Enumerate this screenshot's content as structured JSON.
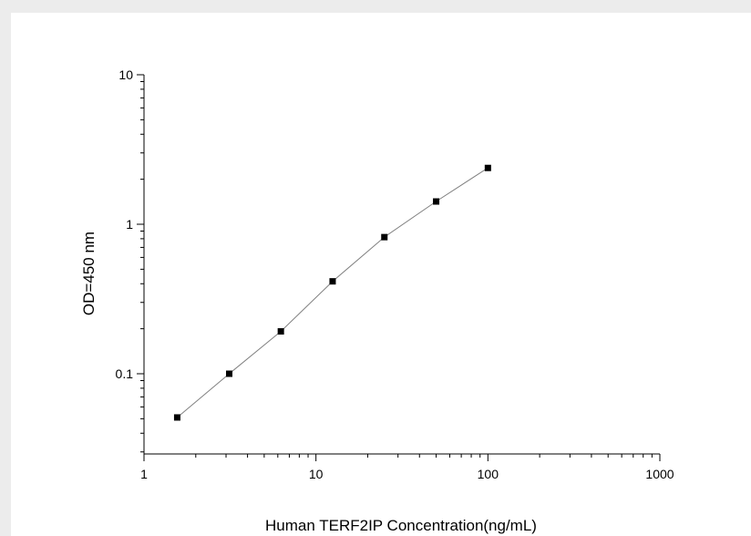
{
  "chart_data": {
    "type": "scatter",
    "xlabel": "Human TERF2IP Concentration(ng/mL)",
    "ylabel": "OD=450 nm",
    "xscale": "log",
    "yscale": "log",
    "xlim": [
      1,
      1000
    ],
    "ylim": [
      0.03,
      10
    ],
    "x_ticks": [
      1,
      10,
      100,
      1000
    ],
    "x_tick_labels": [
      "1",
      "10",
      "100",
      "1000"
    ],
    "y_ticks": [
      0.1,
      1,
      10
    ],
    "y_tick_labels": [
      "0.1",
      "1",
      "10"
    ],
    "grid": false,
    "legend": "none",
    "series": [
      {
        "x": [
          1.56,
          3.13,
          6.25,
          12.5,
          25,
          50,
          100
        ],
        "y": [
          0.051,
          0.1,
          0.192,
          0.415,
          0.82,
          1.42,
          2.38
        ],
        "marker": "square",
        "marker_color": "#000000",
        "line_color": "#808080"
      }
    ]
  }
}
